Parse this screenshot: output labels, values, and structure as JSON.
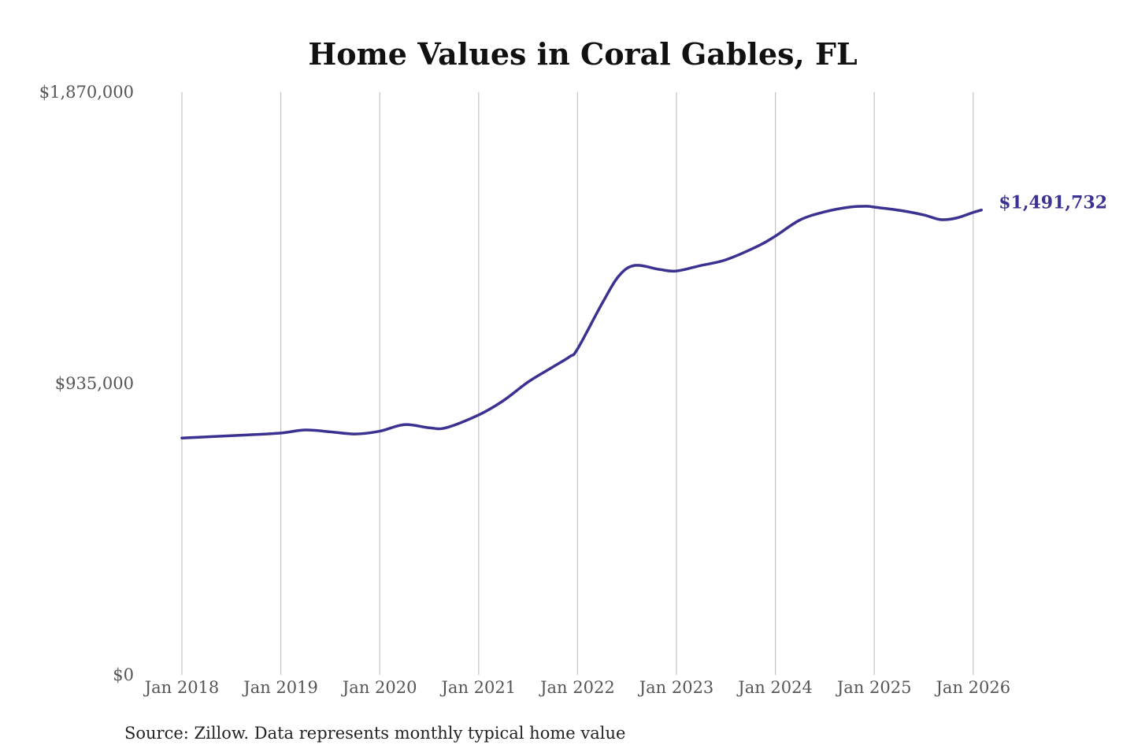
{
  "chart_data": {
    "type": "line",
    "title": "Home Values in Coral Gables, FL",
    "source": "Source: Zillow. Data represents monthly typical home value",
    "xlabel": "",
    "ylabel": "",
    "ylim": [
      0,
      1870000
    ],
    "xlim": [
      2018.0,
      2026.083
    ],
    "grid": "vertical",
    "color": "#3a3191",
    "y_ticks": [
      {
        "value": 0,
        "label": "$0"
      },
      {
        "value": 935000,
        "label": "$935,000"
      },
      {
        "value": 1870000,
        "label": "$1,870,000"
      }
    ],
    "x_ticks": [
      {
        "value": 2018,
        "label": "Jan 2018"
      },
      {
        "value": 2019,
        "label": "Jan 2019"
      },
      {
        "value": 2020,
        "label": "Jan 2020"
      },
      {
        "value": 2021,
        "label": "Jan 2021"
      },
      {
        "value": 2022,
        "label": "Jan 2022"
      },
      {
        "value": 2023,
        "label": "Jan 2023"
      },
      {
        "value": 2024,
        "label": "Jan 2024"
      },
      {
        "value": 2025,
        "label": "Jan 2025"
      },
      {
        "value": 2026,
        "label": "Jan 2026"
      }
    ],
    "end_label": "$1,491,732",
    "series": [
      {
        "name": "Typical home value",
        "points": [
          [
            2018.0,
            760000
          ],
          [
            2018.33,
            765000
          ],
          [
            2018.67,
            770000
          ],
          [
            2019.0,
            776000
          ],
          [
            2019.25,
            786000
          ],
          [
            2019.5,
            780000
          ],
          [
            2019.75,
            773000
          ],
          [
            2020.0,
            782000
          ],
          [
            2020.25,
            803000
          ],
          [
            2020.5,
            793000
          ],
          [
            2020.67,
            793000
          ],
          [
            2021.0,
            834000
          ],
          [
            2021.25,
            880000
          ],
          [
            2021.5,
            940000
          ],
          [
            2021.75,
            988000
          ],
          [
            2021.92,
            1021000
          ],
          [
            2022.0,
            1046000
          ],
          [
            2022.25,
            1193000
          ],
          [
            2022.42,
            1281000
          ],
          [
            2022.58,
            1314000
          ],
          [
            2022.83,
            1301000
          ],
          [
            2023.0,
            1296000
          ],
          [
            2023.25,
            1314000
          ],
          [
            2023.5,
            1332000
          ],
          [
            2023.83,
            1377000
          ],
          [
            2024.0,
            1408000
          ],
          [
            2024.25,
            1460000
          ],
          [
            2024.5,
            1486000
          ],
          [
            2024.75,
            1501000
          ],
          [
            2024.92,
            1504000
          ],
          [
            2025.0,
            1501000
          ],
          [
            2025.25,
            1491000
          ],
          [
            2025.5,
            1476000
          ],
          [
            2025.67,
            1461000
          ],
          [
            2025.83,
            1466000
          ],
          [
            2026.0,
            1484000
          ],
          [
            2026.083,
            1491732
          ]
        ]
      }
    ]
  }
}
